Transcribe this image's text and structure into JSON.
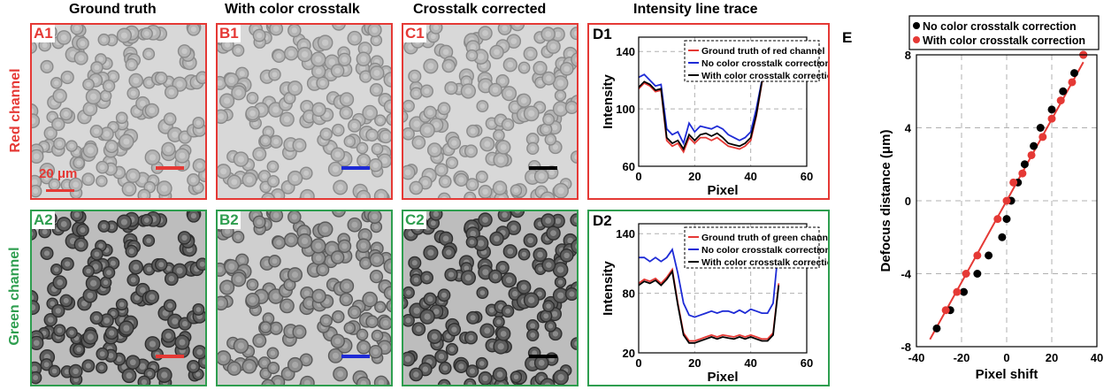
{
  "columns": [
    "Ground truth",
    "With color crosstalk",
    "Crosstalk corrected",
    "Intensity line trace"
  ],
  "rows": {
    "red": "Red channel",
    "green": "Green channel"
  },
  "panels": {
    "A1": "A1",
    "B1": "B1",
    "C1": "C1",
    "D1": "D1",
    "A2": "A2",
    "B2": "B2",
    "C2": "C2",
    "D2": "D2",
    "E": "E"
  },
  "scale_label": "20 μm",
  "colors": {
    "red": "#e53935",
    "green": "#2e9e4f",
    "blue": "#1e2bd6",
    "black": "#000000"
  },
  "chart_data": [
    {
      "id": "D1",
      "type": "line",
      "xlabel": "Pixel",
      "ylabel": "Intensity",
      "xlim": [
        0,
        60
      ],
      "ylim": [
        60,
        150
      ],
      "xticks": [
        0,
        20,
        40,
        60
      ],
      "yticks": [
        60,
        100,
        140
      ],
      "grid": true,
      "legend_position": "top-right",
      "series": [
        {
          "name": "Ground truth of red channel",
          "color": "#e53935",
          "x": [
            0,
            2,
            4,
            6,
            8,
            10,
            12,
            14,
            16,
            18,
            20,
            22,
            24,
            26,
            28,
            30,
            32,
            34,
            36,
            38,
            40,
            42,
            44,
            46,
            48,
            50
          ],
          "y": [
            114,
            118,
            116,
            112,
            113,
            78,
            74,
            76,
            70,
            80,
            76,
            80,
            80,
            78,
            80,
            77,
            74,
            73,
            72,
            74,
            78,
            95,
            118,
            132,
            140,
            132
          ]
        },
        {
          "name": "No color crosstalk correction",
          "color": "#1e2bd6",
          "x": [
            0,
            2,
            4,
            6,
            8,
            10,
            12,
            14,
            16,
            18,
            20,
            22,
            24,
            26,
            28,
            30,
            32,
            34,
            36,
            38,
            40,
            42,
            44,
            46,
            48,
            50
          ],
          "y": [
            122,
            124,
            120,
            116,
            117,
            86,
            82,
            84,
            76,
            90,
            84,
            88,
            87,
            86,
            88,
            86,
            82,
            80,
            78,
            80,
            84,
            100,
            120,
            134,
            142,
            134
          ]
        },
        {
          "name": "With color crosstalk correction",
          "color": "#000000",
          "x": [
            0,
            2,
            4,
            6,
            8,
            10,
            12,
            14,
            16,
            18,
            20,
            22,
            24,
            26,
            28,
            30,
            32,
            34,
            36,
            38,
            40,
            42,
            44,
            46,
            48,
            50
          ],
          "y": [
            115,
            119,
            117,
            113,
            114,
            80,
            76,
            78,
            72,
            82,
            78,
            82,
            83,
            81,
            83,
            80,
            76,
            75,
            74,
            76,
            80,
            96,
            119,
            133,
            141,
            133
          ]
        }
      ]
    },
    {
      "id": "D2",
      "type": "line",
      "xlabel": "Pixel",
      "ylabel": "Intensity",
      "xlim": [
        0,
        60
      ],
      "ylim": [
        20,
        150
      ],
      "xticks": [
        0,
        20,
        40,
        60
      ],
      "yticks": [
        20,
        80,
        140
      ],
      "grid": true,
      "legend_position": "top-right",
      "series": [
        {
          "name": "Ground truth of green channel",
          "color": "#e53935",
          "x": [
            0,
            2,
            4,
            6,
            8,
            10,
            12,
            14,
            16,
            18,
            20,
            22,
            24,
            26,
            28,
            30,
            32,
            34,
            36,
            38,
            40,
            42,
            44,
            46,
            48,
            50
          ],
          "y": [
            90,
            94,
            92,
            95,
            90,
            96,
            104,
            70,
            40,
            32,
            32,
            34,
            36,
            38,
            36,
            38,
            37,
            36,
            38,
            36,
            38,
            36,
            34,
            34,
            40,
            90
          ]
        },
        {
          "name": "No color crosstalk correction",
          "color": "#1e2bd6",
          "x": [
            0,
            2,
            4,
            6,
            8,
            10,
            12,
            14,
            16,
            18,
            20,
            22,
            24,
            26,
            28,
            30,
            32,
            34,
            36,
            38,
            40,
            42,
            44,
            46,
            48,
            50
          ],
          "y": [
            116,
            116,
            112,
            116,
            112,
            116,
            124,
            100,
            70,
            58,
            56,
            58,
            60,
            62,
            60,
            62,
            62,
            60,
            63,
            60,
            64,
            62,
            60,
            60,
            70,
            128
          ]
        },
        {
          "name": "With color crosstalk correction",
          "color": "#000000",
          "x": [
            0,
            2,
            4,
            6,
            8,
            10,
            12,
            14,
            16,
            18,
            20,
            22,
            24,
            26,
            28,
            30,
            32,
            34,
            36,
            38,
            40,
            42,
            44,
            46,
            48,
            50
          ],
          "y": [
            88,
            92,
            90,
            93,
            88,
            94,
            102,
            68,
            38,
            30,
            30,
            32,
            34,
            36,
            34,
            36,
            35,
            34,
            36,
            34,
            36,
            34,
            32,
            32,
            38,
            88
          ]
        }
      ]
    },
    {
      "id": "E",
      "type": "scatter",
      "xlabel": "Pixel shift",
      "ylabel": "Defocus distance (μm)",
      "xlim": [
        -40,
        40
      ],
      "ylim": [
        -8,
        8
      ],
      "xticks": [
        -40,
        -20,
        0,
        20,
        40
      ],
      "yticks": [
        -8,
        -4,
        0,
        4,
        8
      ],
      "grid": true,
      "legend_position": "top-left",
      "fit_line": {
        "x": [
          -34,
          34
        ],
        "y": [
          -7.6,
          7.6
        ],
        "color": "#e53935"
      },
      "series": [
        {
          "name": "No color crosstalk correction",
          "color": "#000000",
          "x": [
            -31,
            -25,
            -19,
            -13,
            -8,
            -2,
            0,
            2,
            5,
            8,
            12,
            15,
            20,
            25,
            30,
            34
          ],
          "y": [
            -7,
            -6,
            -5,
            -4,
            -3,
            -2,
            -1,
            0,
            1,
            2,
            3,
            4,
            5,
            6,
            7,
            8
          ]
        },
        {
          "name": "With color crosstalk correction",
          "color": "#e53935",
          "x": [
            -27,
            -22,
            -18,
            -13,
            -4,
            0,
            3,
            7,
            11,
            16,
            20,
            24,
            29,
            34
          ],
          "y": [
            -6,
            -5,
            -4,
            -3,
            -1,
            0,
            1,
            1.5,
            2.5,
            3.5,
            4.5,
            5.5,
            6.5,
            8
          ]
        }
      ]
    }
  ]
}
